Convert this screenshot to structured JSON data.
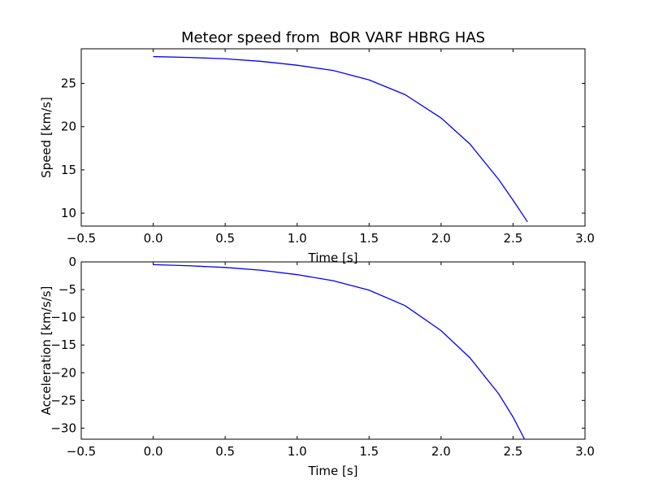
{
  "chart_data": [
    {
      "type": "line",
      "title": "Meteor speed from  BOR VARF HBRG HAS",
      "xlabel": "Time [s]",
      "ylabel": "Speed [km/s]",
      "xlim": [
        -0.5,
        3.0
      ],
      "ylim": [
        8.5,
        29.0
      ],
      "xticks": [
        "−0.5",
        "0.0",
        "0.5",
        "1.0",
        "1.5",
        "2.0",
        "2.5",
        "3.0"
      ],
      "xtick_values": [
        -0.5,
        0.0,
        0.5,
        1.0,
        1.5,
        2.0,
        2.5,
        3.0
      ],
      "yticks": [
        "10",
        "15",
        "20",
        "25"
      ],
      "ytick_values": [
        10,
        15,
        20,
        25
      ],
      "grid": false,
      "series": [
        {
          "color": "#0000ff",
          "x": [
            0.0,
            0.25,
            0.5,
            0.75,
            1.0,
            1.25,
            1.5,
            1.75,
            2.0,
            2.2,
            2.4,
            2.5,
            2.6
          ],
          "y": [
            28.1,
            28.0,
            27.85,
            27.55,
            27.1,
            26.5,
            25.4,
            23.7,
            21.0,
            18.0,
            13.9,
            11.5,
            9.0
          ]
        }
      ]
    },
    {
      "type": "line",
      "title": "",
      "xlabel": "Time [s]",
      "ylabel": "Acceleration [km/s/s]",
      "xlim": [
        -0.5,
        3.0
      ],
      "ylim": [
        -32.0,
        0.0
      ],
      "xticks": [
        "−0.5",
        "0.0",
        "0.5",
        "1.0",
        "1.5",
        "2.0",
        "2.5",
        "3.0"
      ],
      "xtick_values": [
        -0.5,
        0.0,
        0.5,
        1.0,
        1.5,
        2.0,
        2.5,
        3.0
      ],
      "yticks": [
        "0",
        "−5",
        "−10",
        "−15",
        "−20",
        "−25",
        "−30"
      ],
      "ytick_values": [
        0,
        -5,
        -10,
        -15,
        -20,
        -25,
        -30
      ],
      "grid": false,
      "series": [
        {
          "color": "#0000ff",
          "x": [
            0.0,
            0.25,
            0.5,
            0.75,
            1.0,
            1.25,
            1.5,
            1.75,
            2.0,
            2.2,
            2.4,
            2.5,
            2.58
          ],
          "y": [
            -0.5,
            -0.7,
            -1.0,
            -1.5,
            -2.3,
            -3.4,
            -5.1,
            -7.9,
            -12.4,
            -17.3,
            -23.8,
            -28.0,
            -32.0
          ]
        }
      ]
    }
  ]
}
